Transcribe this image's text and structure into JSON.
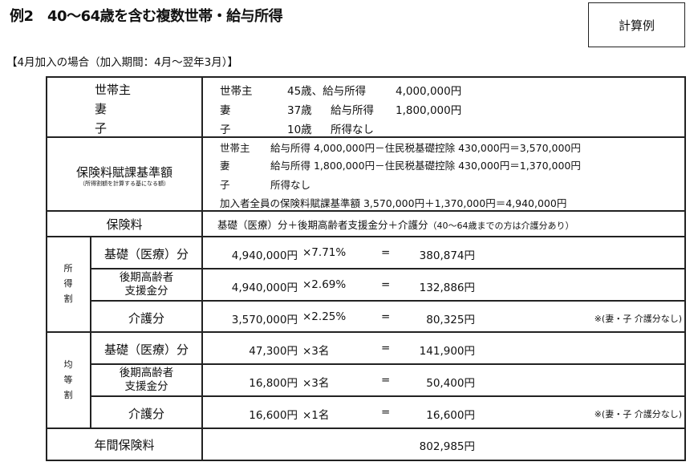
{
  "title": "例2　40～64歳を含む複数世帯・給与所得",
  "badge": "計算例",
  "subtitle": "【4月加入の場合（加入期間：4月～翌年3月）】",
  "members": {
    "labels": [
      "世帯主",
      "妻",
      "子"
    ],
    "rows": [
      {
        "who": "世帯主",
        "age": "45歳、給与所得",
        "income": "4,000,000円"
      },
      {
        "who": "妻",
        "age": "37歳",
        "desc": "給与所得",
        "income": "1,800,000円"
      },
      {
        "who": "子",
        "age": "10歳",
        "desc": "所得なし"
      }
    ]
  },
  "base": {
    "label": "保険料賦課基準額",
    "sublabel": "（所得割額を計算する基になる額）",
    "lines": [
      {
        "who": "世帯主",
        "text": "給与所得 4,000,000円－住民税基礎控除 430,000円＝3,570,000円"
      },
      {
        "who": "妻",
        "text": "給与所得 1,800,000円－住民税基礎控除 430,000円＝1,370,000円"
      },
      {
        "who": "子",
        "text": "所得なし"
      }
    ],
    "total": "加入者全員の保険料賦課基準額 3,570,000円＋1,370,000円＝4,940,000円"
  },
  "premium": {
    "label": "保険料",
    "text": "基礎（医療）分＋後期高齢者支援金分＋介護分",
    "note": "（40～64歳までの方は介護分あり）"
  },
  "income_based": {
    "label": "所得割",
    "rows": [
      {
        "label": "基礎（医療）分",
        "base": "4,940,000円",
        "rate": "×7.71%",
        "eq": "=",
        "result": "380,874円",
        "note": ""
      },
      {
        "label1": "後期高齢者",
        "label2": "支援金分",
        "base": "4,940,000円",
        "rate": "×2.69%",
        "eq": "=",
        "result": "132,886円",
        "note": ""
      },
      {
        "label": "介護分",
        "base": "3,570,000円",
        "rate": "×2.25%",
        "eq": "=",
        "result": "80,325円",
        "note": "※(妻・子 介護分なし)"
      }
    ]
  },
  "per_capita": {
    "label": "均等割",
    "rows": [
      {
        "label": "基礎（医療）分",
        "base": "47,300円",
        "rate": "×3名",
        "eq": "=",
        "result": "141,900円",
        "note": ""
      },
      {
        "label1": "後期高齢者",
        "label2": "支援金分",
        "base": "16,800円",
        "rate": "×3名",
        "eq": "=",
        "result": "50,400円",
        "note": ""
      },
      {
        "label": "介護分",
        "base": "16,600円",
        "rate": "×1名",
        "eq": "=",
        "result": "16,600円",
        "note": "※(妻・子 介護分なし)"
      }
    ]
  },
  "annual": {
    "label": "年間保険料",
    "value": "802,985円"
  }
}
